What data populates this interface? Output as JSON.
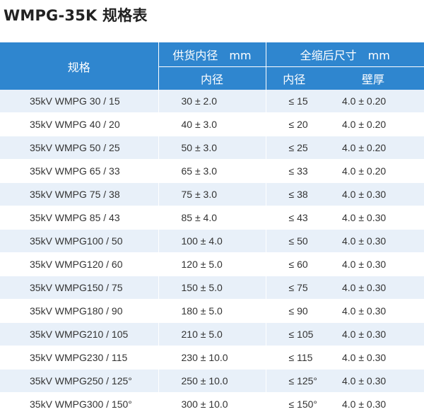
{
  "title": "WMPG-35K 规格表",
  "header": {
    "spec": "规格",
    "supply_group": "供货内径　mm",
    "supply_id": "内径",
    "shrunk_group": "全缩后尺寸　mm",
    "shrunk_id": "内径",
    "shrunk_wall": "壁厚"
  },
  "rows": [
    {
      "spec": "35kV  WMPG 30  /  15",
      "supply": "30  ± 2.0",
      "id": "≤ 15",
      "wall": "4.0  ± 0.20"
    },
    {
      "spec": "35kV  WMPG 40  /  20",
      "supply": "40  ± 3.0",
      "id": "≤ 20",
      "wall": "4.0  ± 0.20"
    },
    {
      "spec": "35kV  WMPG 50  /  25",
      "supply": "50  ± 3.0",
      "id": "≤ 25",
      "wall": "4.0  ± 0.20"
    },
    {
      "spec": "35kV  WMPG 65  /  33",
      "supply": "65  ± 3.0",
      "id": "≤ 33",
      "wall": "4.0  ± 0.20"
    },
    {
      "spec": "35kV  WMPG 75  /  38",
      "supply": "75  ± 3.0",
      "id": "≤ 38",
      "wall": "4.0  ± 0.30"
    },
    {
      "spec": "35kV  WMPG 85  /  43",
      "supply": "85  ± 4.0",
      "id": "≤ 43",
      "wall": "4.0  ± 0.30"
    },
    {
      "spec": "35kV  WMPG100  /  50",
      "supply": "100  ± 4.0",
      "id": "≤ 50",
      "wall": "4.0  ± 0.30"
    },
    {
      "spec": "35kV  WMPG120  /  60",
      "supply": "120  ± 5.0",
      "id": "≤ 60",
      "wall": "4.0  ± 0.30"
    },
    {
      "spec": "35kV  WMPG150  /  75",
      "supply": "150  ± 5.0",
      "id": "≤ 75",
      "wall": "4.0  ± 0.30"
    },
    {
      "spec": "35kV  WMPG180  /  90",
      "supply": "180  ± 5.0",
      "id": "≤ 90",
      "wall": "4.0  ± 0.30"
    },
    {
      "spec": "35kV  WMPG210  /  105",
      "supply": "210  ± 5.0",
      "id": "≤ 105",
      "wall": "4.0  ± 0.30"
    },
    {
      "spec": "35kV  WMPG230  /  115",
      "supply": "230  ± 10.0",
      "id": "≤ 115",
      "wall": "4.0  ± 0.30"
    },
    {
      "spec": "35kV  WMPG250  /  125°",
      "supply": "250  ± 10.0",
      "id": "≤ 125°",
      "wall": "4.0  ± 0.30"
    },
    {
      "spec": "35kV  WMPG300  /  150°",
      "supply": "300  ± 10.0",
      "id": "≤ 150°",
      "wall": "4.0  ± 0.30"
    }
  ]
}
